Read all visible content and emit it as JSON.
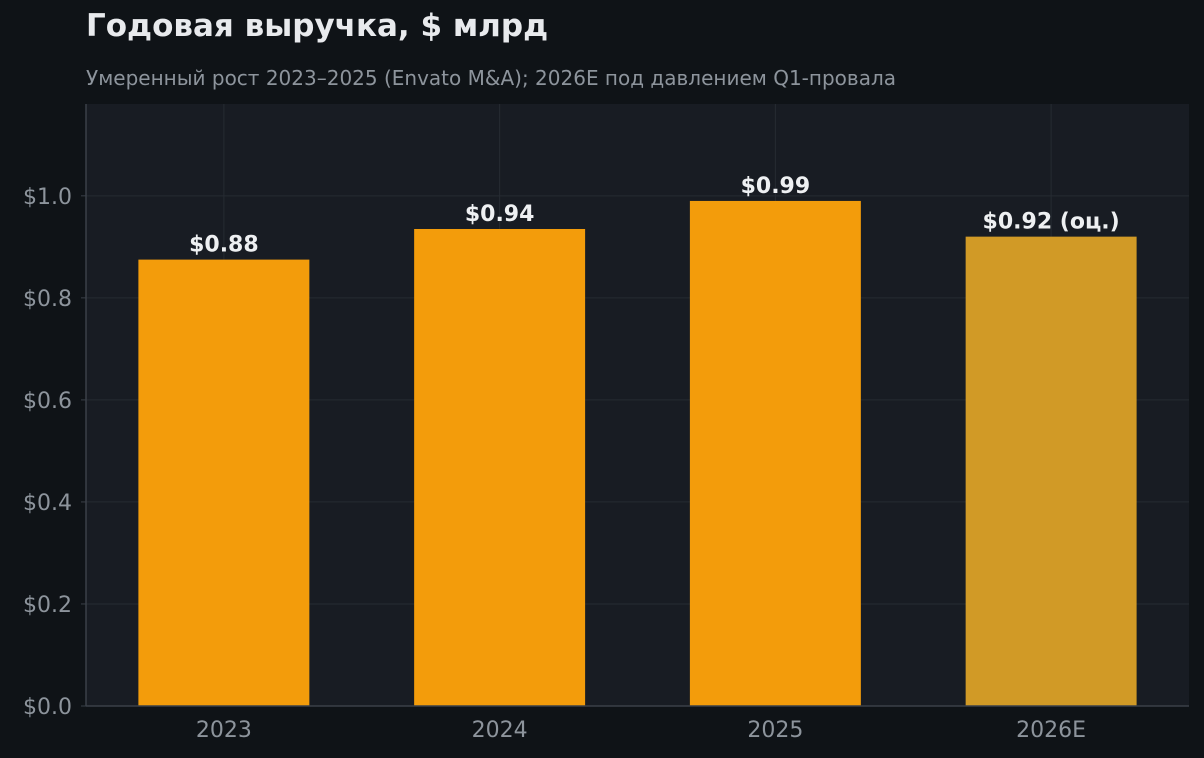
{
  "title": "Годовая выручка, $ млрд",
  "subtitle": "Умеренный рост 2023–2025 (Envato M&A); 2026E под давлением Q1-провала",
  "chart_data": {
    "type": "bar",
    "title": "Годовая выручка, $ млрд",
    "subtitle": "Умеренный рост 2023–2025 (Envato M&A); 2026E под давлением Q1-провала",
    "categories": [
      "2023",
      "2024",
      "2025",
      "2026E"
    ],
    "values": [
      0.875,
      0.935,
      0.99,
      0.92
    ],
    "data_labels": [
      "$0.88",
      "$0.94",
      "$0.99",
      "$0.92 (оц.)"
    ],
    "bar_colors": [
      "#f39c0b",
      "#f39c0b",
      "#f39c0b",
      "#d19a26"
    ],
    "ylim": [
      0,
      1.18
    ],
    "yticks": [
      0.0,
      0.2,
      0.4,
      0.6,
      0.8,
      1.0
    ],
    "ytick_labels": [
      "$0.0",
      "$0.2",
      "$0.4",
      "$0.6",
      "$0.8",
      "$1.0"
    ],
    "grid": true,
    "legend": "none",
    "colors": {
      "background": "#0f1317",
      "plot_background": "#181c23",
      "grid": "#262b33",
      "axis": "#3a4048",
      "text_muted": "#8d949c",
      "text_bright": "#eef0f2"
    }
  }
}
